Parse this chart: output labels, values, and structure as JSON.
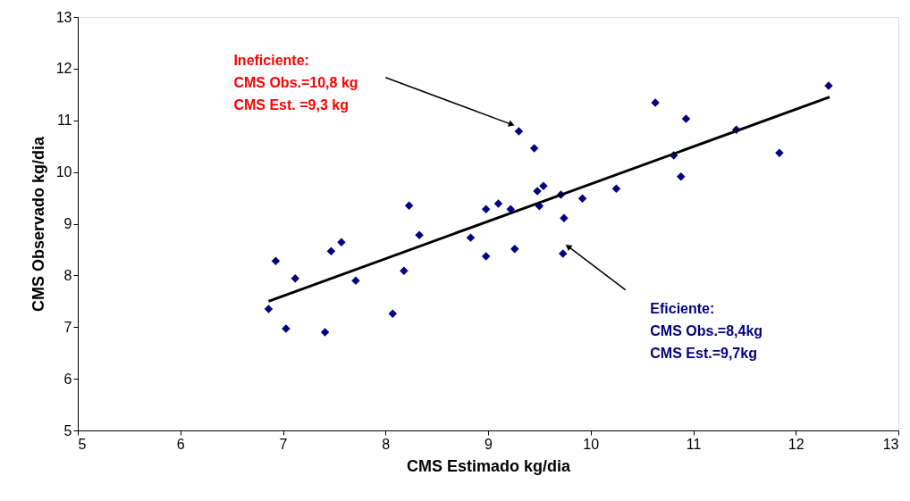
{
  "chart_data": {
    "type": "scatter",
    "xlabel": "CMS Estimado kg/dia",
    "ylabel": "CMS Observado kg/dia",
    "xlim": [
      5,
      13
    ],
    "xticks": [
      5,
      6,
      7,
      8,
      9,
      10,
      11,
      12,
      13
    ],
    "ylim": [
      5,
      13
    ],
    "yticks": [
      5,
      6,
      7,
      8,
      9,
      10,
      11,
      12,
      13
    ],
    "grid": false,
    "series": [
      {
        "marker": "diamond",
        "color": "#000080",
        "x": [
          6.86,
          6.93,
          7.03,
          7.12,
          7.41,
          7.47,
          7.57,
          7.71,
          8.07,
          8.18,
          8.23,
          8.33,
          8.83,
          8.98,
          8.98,
          9.1,
          9.22,
          9.26,
          9.3,
          9.45,
          9.48,
          9.5,
          9.54,
          9.71,
          9.73,
          9.74,
          9.92,
          10.25,
          10.63,
          10.81,
          10.88,
          10.93,
          11.42,
          11.84,
          12.32
        ],
        "values": [
          7.35,
          8.28,
          6.97,
          7.94,
          6.9,
          8.47,
          8.64,
          7.9,
          7.26,
          8.09,
          9.35,
          8.78,
          8.73,
          8.37,
          9.28,
          9.39,
          9.28,
          8.51,
          10.79,
          10.46,
          9.63,
          9.34,
          9.73,
          9.56,
          8.42,
          9.11,
          9.49,
          9.68,
          11.34,
          10.32,
          9.91,
          11.03,
          10.82,
          10.37,
          11.67
        ]
      },
      {
        "type": "line",
        "marker": "none",
        "color": "#000000",
        "x": [
          6.86,
          12.33
        ],
        "values": [
          7.5,
          11.45
        ]
      }
    ],
    "annotations": [
      "Ineficiente:\nCMS Obs.=10,8 kg\nCMS Est. =9,3 kg",
      "Eficiente:\nCMS Obs.=8,4kg\nCMS Est.=9,7kg"
    ]
  }
}
